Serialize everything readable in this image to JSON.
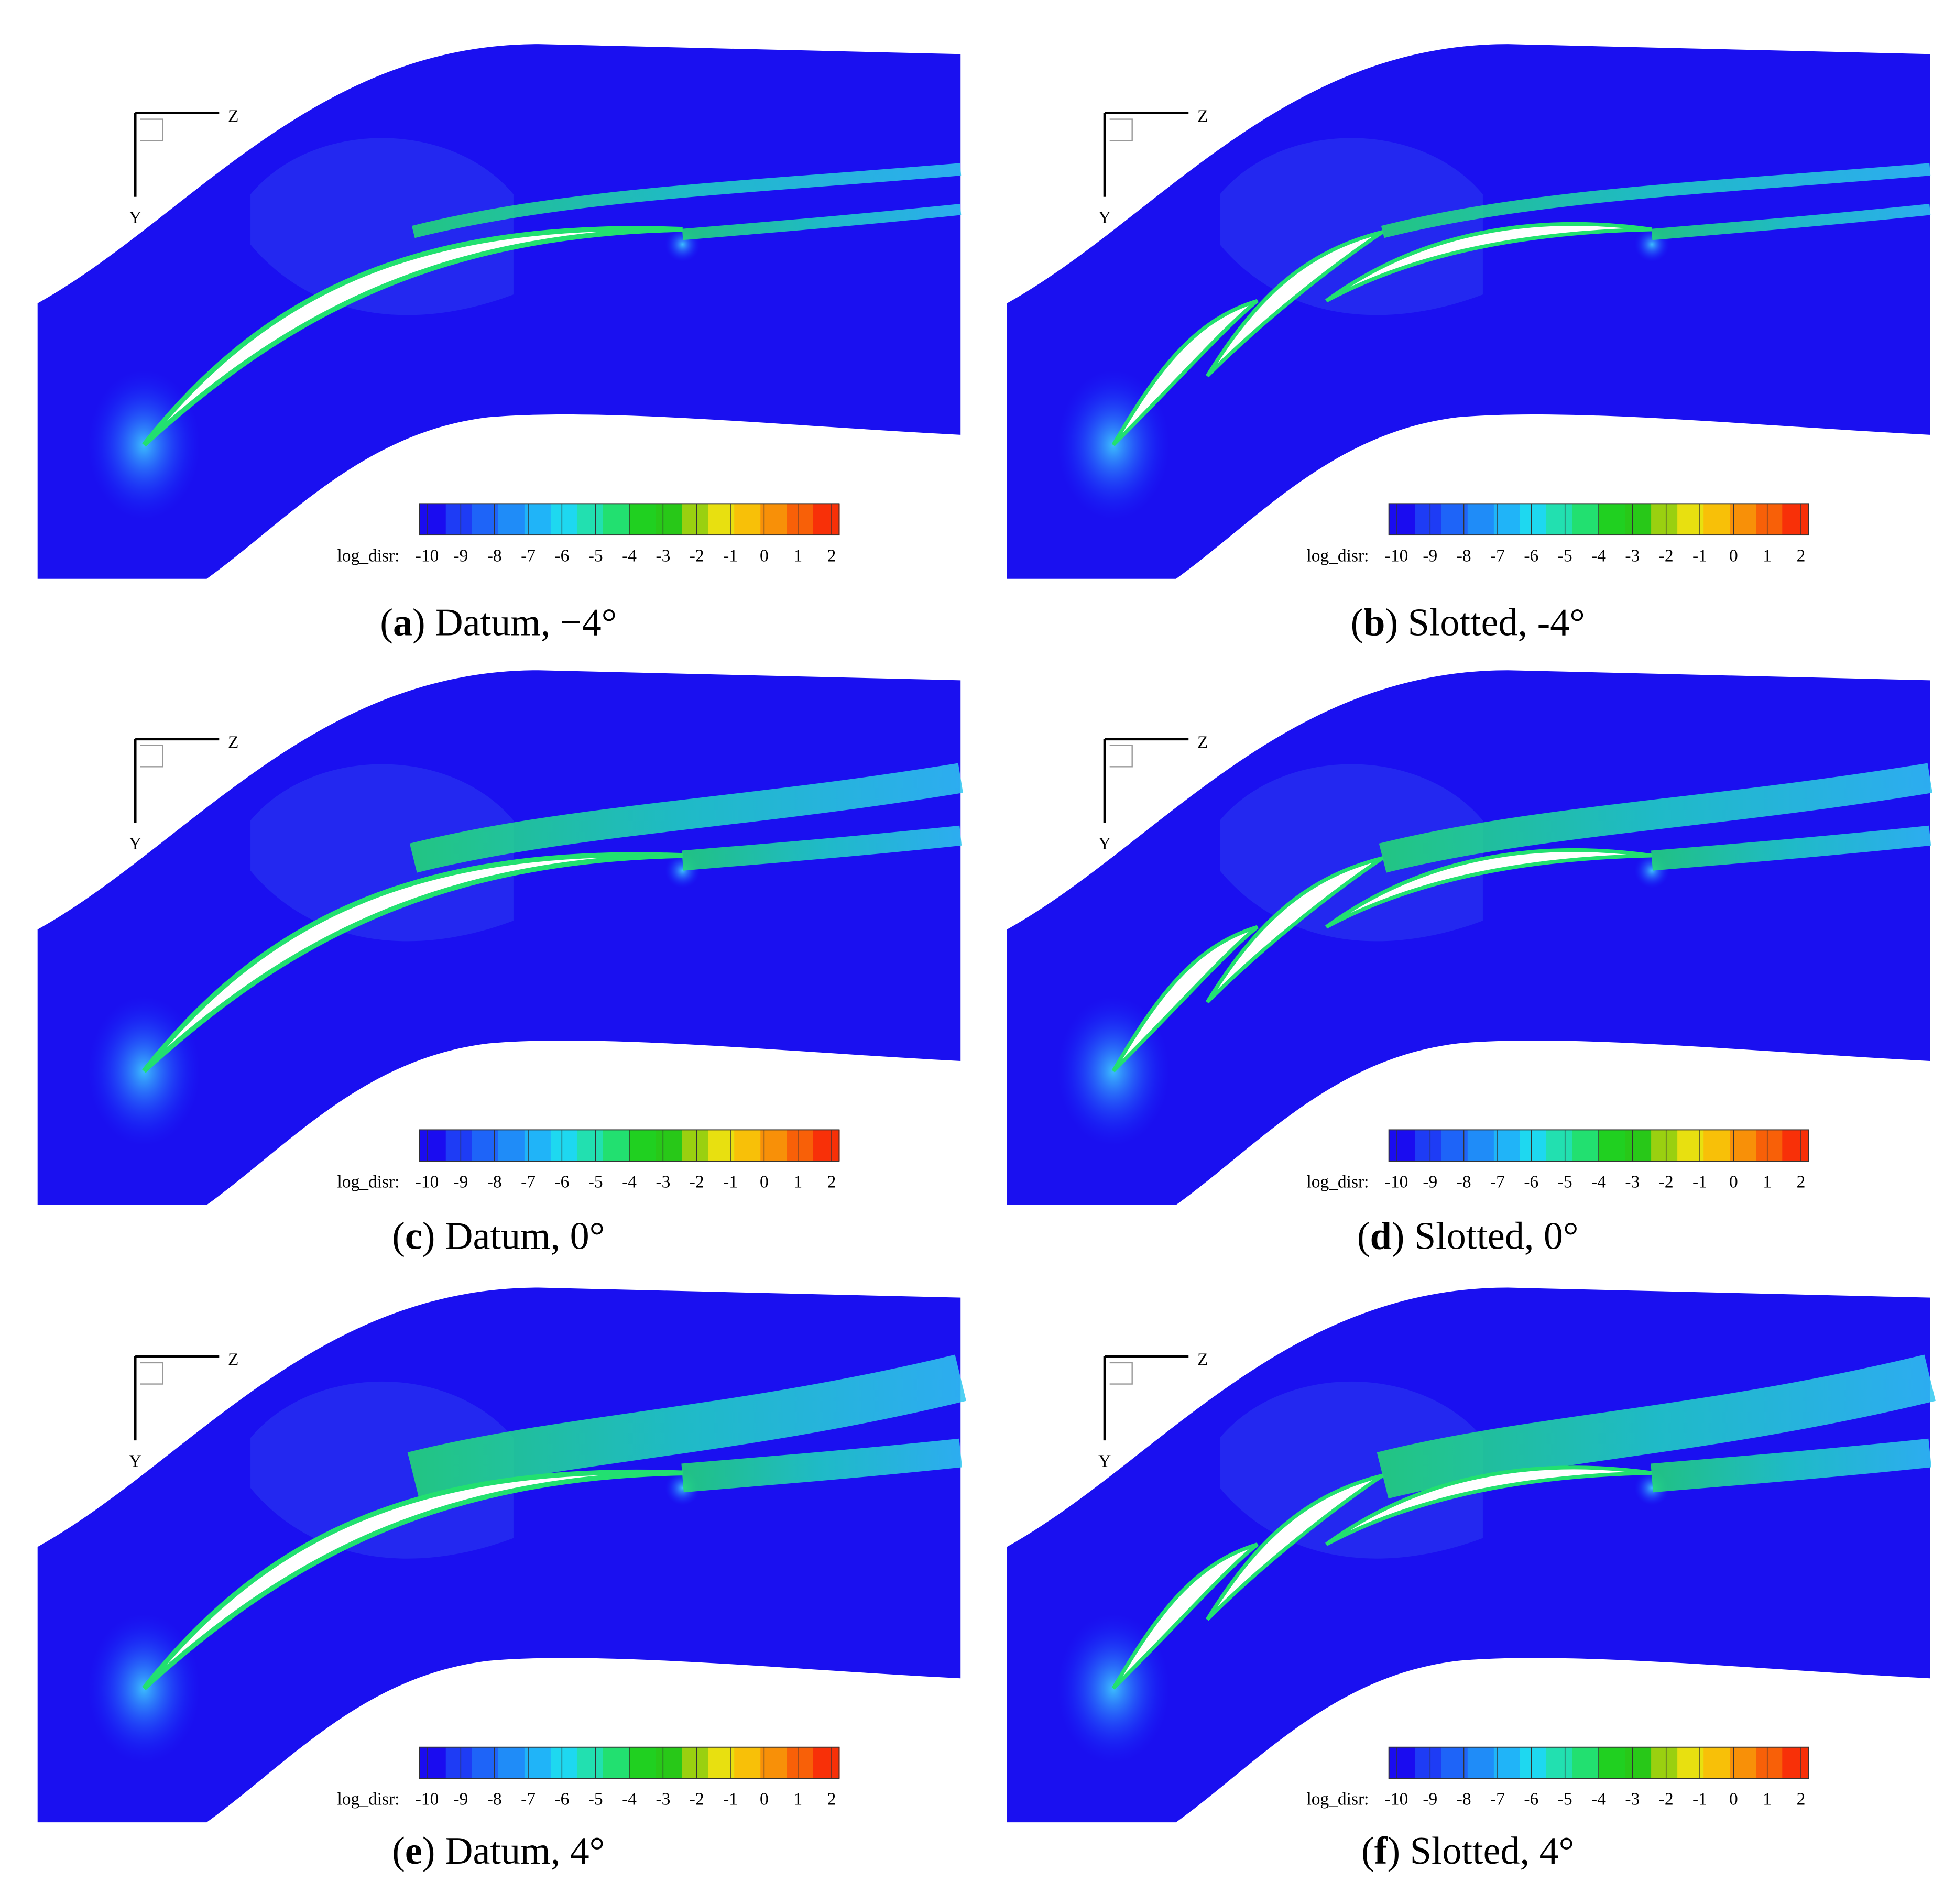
{
  "panels": [
    {
      "caption": [
        "(",
        "a",
        ") Datum, −4°"
      ]
    },
    {
      "caption": [
        "(",
        "b",
        ") Slotted, -4°"
      ]
    },
    {
      "caption": [
        "(",
        "c",
        ") Datum, 0°"
      ]
    },
    {
      "caption": [
        "(",
        "d",
        ") Slotted, 0°"
      ]
    },
    {
      "caption": [
        "(",
        "e",
        ") Datum, 4°"
      ]
    },
    {
      "caption": [
        "(",
        "f",
        ") Slotted, 4°"
      ]
    }
  ],
  "axes": {
    "vertical": "Y",
    "horizontal": "Z"
  },
  "colorbar": {
    "label": "log_disr:",
    "ticks": [
      -10,
      -9,
      -8,
      -7,
      -6,
      -5,
      -4,
      -3,
      -2,
      -1,
      0,
      1,
      2
    ]
  }
}
